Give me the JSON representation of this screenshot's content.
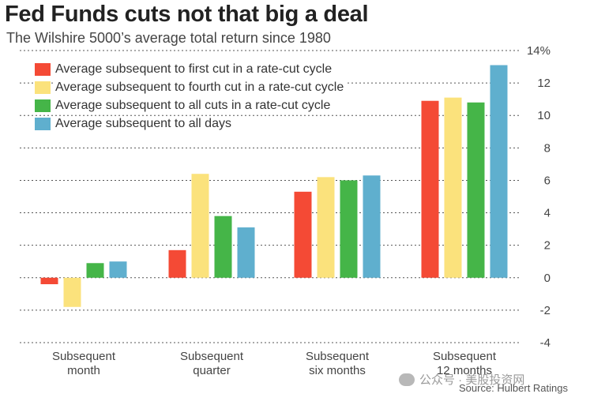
{
  "title": "Fed Funds cuts not that big a deal",
  "subtitle": "The Wilshire 5000’s average total return since 1980",
  "source": "Source: Hulbert Ratings",
  "watermark": "公众号 · 美股投资网",
  "colors": {
    "red": "#f44a35",
    "yellow": "#fbe27c",
    "green": "#45b548",
    "blue": "#5fafce",
    "grid": "#555555",
    "axis_text": "#444444"
  },
  "chart_data": {
    "type": "bar",
    "title": "Fed Funds cuts not that big a deal",
    "subtitle": "The Wilshire 5000’s average total return since 1980",
    "categories": [
      [
        "Subsequent",
        "month"
      ],
      [
        "Subsequent",
        "quarter"
      ],
      [
        "Subsequent",
        "six months"
      ],
      [
        "Subsequent",
        "12 months"
      ]
    ],
    "series": [
      {
        "name": "Average subsequent to first cut in a rate-cut cycle",
        "color": "#f44a35",
        "values": [
          -0.4,
          1.7,
          5.3,
          10.9
        ]
      },
      {
        "name": "Average subsequent to fourth cut in a rate-cut cycle",
        "color": "#fbe27c",
        "values": [
          -1.8,
          6.4,
          6.2,
          11.1
        ]
      },
      {
        "name": "Average subsequent to all cuts in a rate-cut cycle",
        "color": "#45b548",
        "values": [
          0.9,
          3.8,
          6.0,
          10.8
        ]
      },
      {
        "name": "Average subsequent to all days",
        "color": "#5fafce",
        "values": [
          1.0,
          3.1,
          6.3,
          13.1
        ]
      }
    ],
    "ylim": [
      -4,
      14
    ],
    "yticks": [
      -4,
      -2,
      0,
      2,
      4,
      6,
      8,
      10,
      12,
      14
    ],
    "ytick_labels": [
      "-4",
      "-2",
      "0",
      "2",
      "4",
      "6",
      "8",
      "10",
      "12",
      "14%"
    ],
    "grid": true,
    "legend_position": "top-left",
    "y_axis_side": "right"
  }
}
